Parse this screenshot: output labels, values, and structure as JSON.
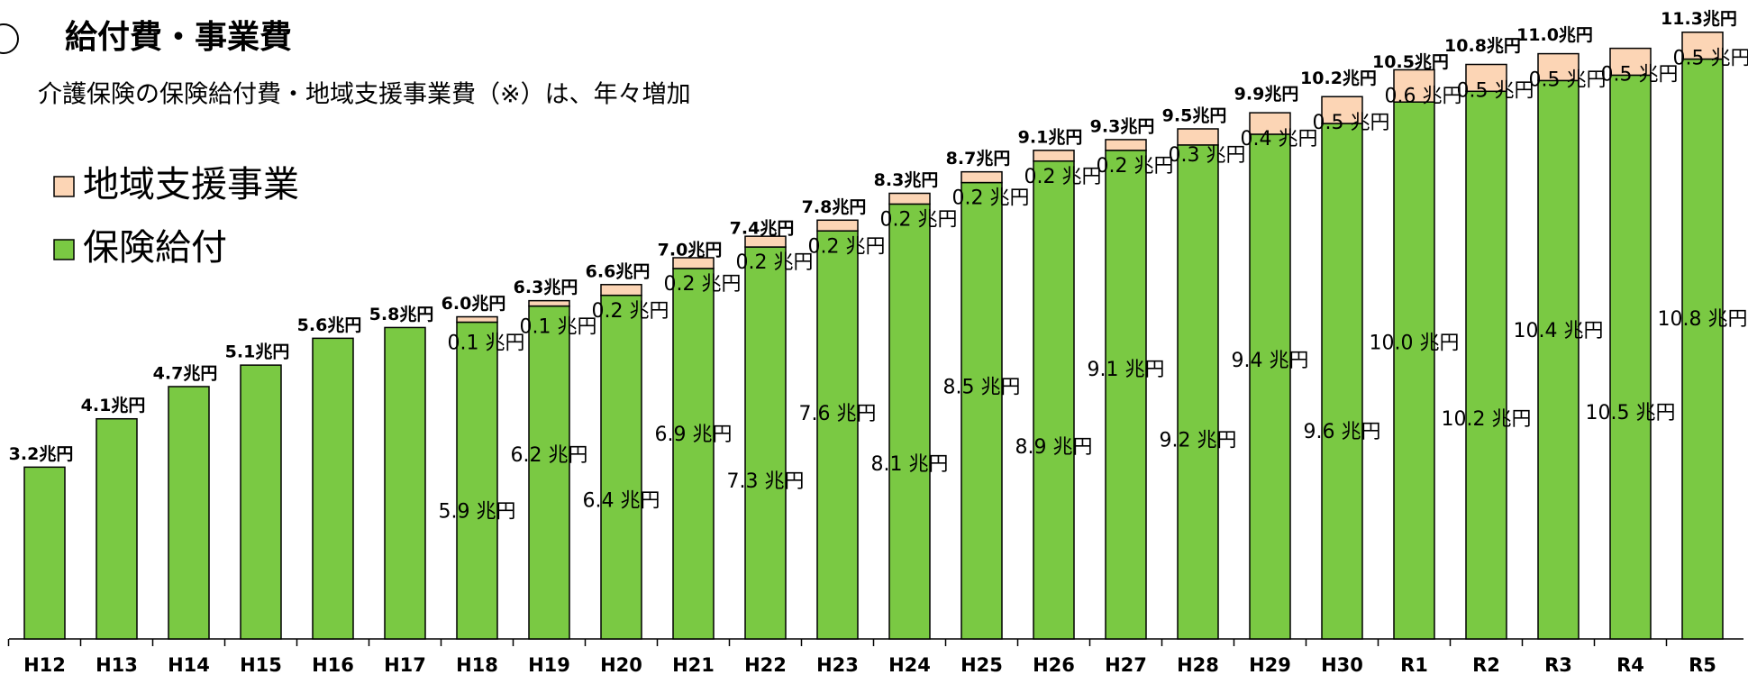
{
  "chart_data": {
    "type": "stacked-bar",
    "title": "給付費・事業費",
    "subtitle": "介護保険の保険給付費・地域支援事業費（※）は、年々増加",
    "categories": [
      "H12",
      "H13",
      "H14",
      "H15",
      "H16",
      "H17",
      "H18",
      "H19",
      "H20",
      "H21",
      "H22",
      "H23",
      "H24",
      "H25",
      "H26",
      "H27",
      "H28",
      "H29",
      "H30",
      "R1",
      "R2",
      "R3",
      "R4",
      "R5"
    ],
    "series": [
      {
        "name": "保険給付",
        "color": "#7ac943",
        "values": [
          3.2,
          4.1,
          4.7,
          5.1,
          5.6,
          5.8,
          5.9,
          6.2,
          6.4,
          6.9,
          7.3,
          7.6,
          8.1,
          8.5,
          8.9,
          9.1,
          9.2,
          9.4,
          9.6,
          10.0,
          10.2,
          10.4,
          10.5,
          10.8
        ],
        "value_labels": [
          null,
          null,
          null,
          null,
          null,
          null,
          "5.9 兆円",
          "6.2 兆円",
          "6.4 兆円",
          "6.9 兆円",
          "7.3 兆円",
          "7.6 兆円",
          "8.1 兆円",
          "8.5 兆円",
          "8.9 兆円",
          "9.1 兆円",
          "9.2 兆円",
          "9.4 兆円",
          "9.6 兆円",
          "10.0 兆円",
          "10.2 兆円",
          "10.4 兆円",
          "10.5 兆円",
          "10.8 兆円"
        ]
      },
      {
        "name": "地域支援事業",
        "color": "#fcd5b5",
        "values": [
          null,
          null,
          null,
          null,
          null,
          null,
          0.1,
          0.1,
          0.2,
          0.2,
          0.2,
          0.2,
          0.2,
          0.2,
          0.2,
          0.2,
          0.3,
          0.4,
          0.5,
          0.6,
          0.5,
          0.5,
          0.5,
          0.5
        ],
        "value_labels": [
          null,
          null,
          null,
          null,
          null,
          null,
          "0.1 兆円",
          "0.1 兆円",
          "0.2 兆円",
          "0.2 兆円",
          "0.2 兆円",
          "0.2 兆円",
          "0.2 兆円",
          "0.2 兆円",
          "0.2 兆円",
          "0.2 兆円",
          "0.3 兆円",
          "0.4 兆円",
          "0.5 兆円",
          "0.6 兆円",
          "0.5 兆円",
          "0.5 兆円",
          "0.5 兆円",
          "0.5 兆円"
        ]
      }
    ],
    "totals": [
      3.2,
      4.1,
      4.7,
      5.1,
      5.6,
      5.8,
      6.0,
      6.3,
      6.6,
      7.0,
      7.4,
      7.8,
      8.3,
      8.7,
      9.1,
      9.3,
      9.5,
      9.9,
      10.2,
      10.5,
      10.8,
      11.0,
      null,
      11.3
    ],
    "total_labels": [
      "3.2兆円",
      "4.1兆円",
      "4.7兆円",
      "5.1兆円",
      "5.6兆円",
      "5.8兆円",
      "6.0兆円",
      "6.3兆円",
      "6.6兆円",
      "7.0兆円",
      "7.4兆円",
      "7.8兆円",
      "8.3兆円",
      "8.7兆円",
      "9.1兆円",
      "9.3兆円",
      "9.5兆円",
      "9.9兆円",
      "10.2兆円",
      "10.5兆円",
      "10.8兆円",
      "11.0兆円",
      null,
      "11.3兆円"
    ],
    "ylim": [
      0,
      11.9
    ]
  }
}
